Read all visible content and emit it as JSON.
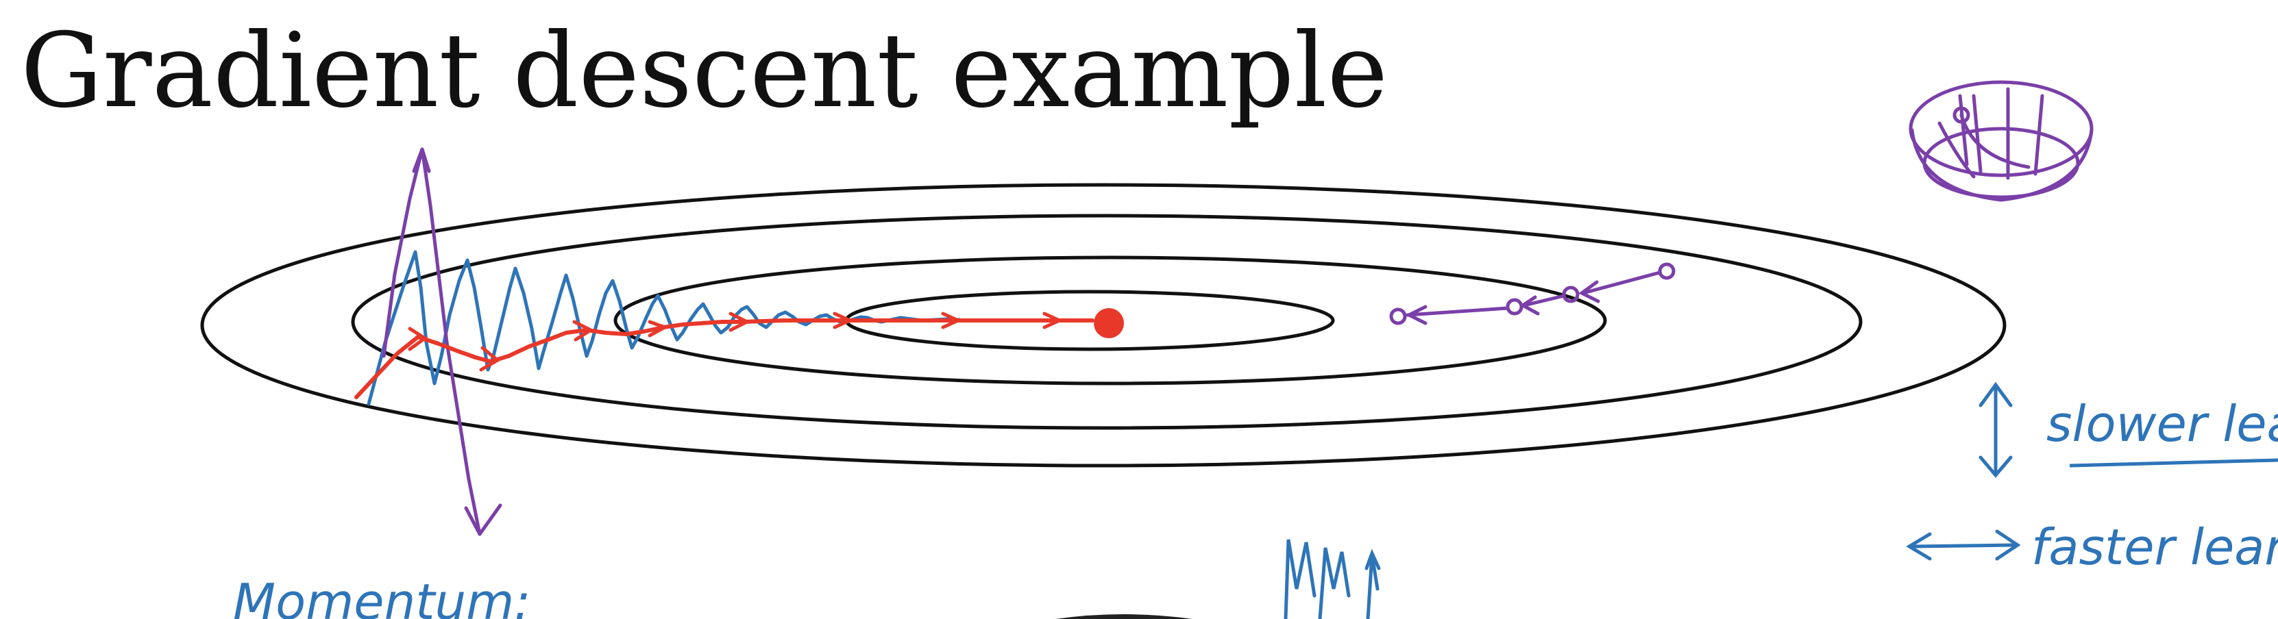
{
  "slide": {
    "title": "Gradient descent example"
  },
  "diagram": {
    "contour_levels": 4,
    "minimum_marker": "red-dot",
    "paths": [
      {
        "name": "blue-oscillating-path",
        "color": "#2e74b8"
      },
      {
        "name": "red-momentum-path",
        "color": "#e8382a"
      },
      {
        "name": "purple-path",
        "color": "#7a3fa8"
      }
    ]
  },
  "annotations": {
    "vertical_note": "slower lear",
    "horizontal_note": "faster lear",
    "bottom_note": "Momentum:"
  },
  "colors": {
    "contour": "#111111",
    "blue_ink": "#2e74b8",
    "red_ink": "#e8382a",
    "purple_ink": "#7a3fa8",
    "dark_blob": "#222222"
  }
}
